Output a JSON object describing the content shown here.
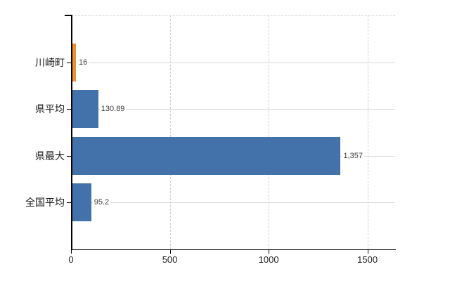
{
  "chart_data": {
    "type": "bar",
    "orientation": "horizontal",
    "title": "",
    "xlabel": "",
    "ylabel": "",
    "categories": [
      "川崎町",
      "県平均",
      "県最大",
      "全国平均"
    ],
    "values": [
      16,
      130.89,
      1357,
      95.2
    ],
    "value_labels": [
      "16",
      "130.89",
      "1,357",
      "95.2"
    ],
    "bar_colors": [
      "#ed9030",
      "#4372ab",
      "#4372ab",
      "#4372ab"
    ],
    "xlim": [
      0,
      1640
    ],
    "x_ticks": [
      0,
      500,
      1000,
      1500
    ],
    "x_tick_labels": [
      "0",
      "500",
      "1000",
      "1500"
    ],
    "grid": true,
    "legend": false
  },
  "colors": {
    "highlight_bar": "#ed9030",
    "default_bar": "#4372ab",
    "vertical_gridline": "#d2d2d2",
    "horizontal_gridline": "#d5d9d5",
    "axis": "#000000",
    "value_label_text": "#3d3d3d",
    "tick_label_text": "#222222"
  }
}
